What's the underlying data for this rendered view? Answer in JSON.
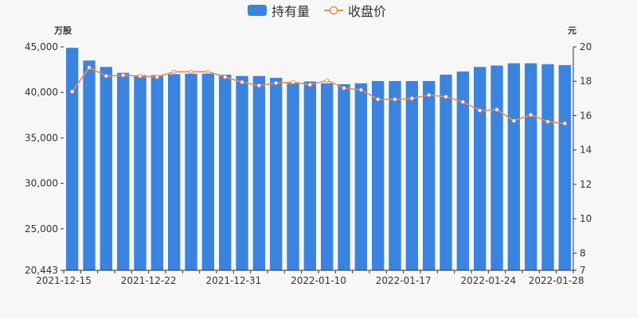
{
  "chart_data": {
    "type": "bar",
    "legend": {
      "placement": "top-center",
      "items": [
        {
          "name": "持有量",
          "kind": "bar",
          "color": "#3a84e0"
        },
        {
          "name": "收盘价",
          "kind": "line",
          "color": "#ef8a4a"
        }
      ]
    },
    "units": {
      "left": "万股",
      "right": "元"
    },
    "left_axis": {
      "min": 20443,
      "max": 45000,
      "ticks": [
        20443,
        25000,
        30000,
        35000,
        40000,
        45000
      ],
      "tick_labels": [
        "20,443",
        "25,000",
        "30,000",
        "35,000",
        "40,000",
        "45,000"
      ]
    },
    "right_axis": {
      "min": 7,
      "max": 20,
      "ticks": [
        7,
        8,
        10,
        12,
        14,
        16,
        18,
        20
      ],
      "tick_labels": [
        "7",
        "8",
        "10",
        "12",
        "14",
        "16",
        "18",
        "20"
      ]
    },
    "x_tick_labels": [
      {
        "index": 0,
        "label": "2021-12-15"
      },
      {
        "index": 5,
        "label": "2021-12-22"
      },
      {
        "index": 10,
        "label": "2021-12-31"
      },
      {
        "index": 15,
        "label": "2022-01-10"
      },
      {
        "index": 20,
        "label": "2022-01-17"
      },
      {
        "index": 25,
        "label": "2022-01-24"
      },
      {
        "index": 29,
        "label": "2022-01-28"
      }
    ],
    "series": [
      {
        "name": "持有量",
        "type": "bar",
        "axis": "left",
        "color": "#3a84e0",
        "values": [
          44900,
          43500,
          42800,
          42150,
          41900,
          41900,
          42000,
          42050,
          42050,
          41950,
          41800,
          41800,
          41600,
          41000,
          41200,
          41000,
          40900,
          41000,
          41250,
          41250,
          41250,
          41250,
          41950,
          42300,
          42800,
          42950,
          43200,
          43200,
          43100,
          43000
        ]
      },
      {
        "name": "收盘价",
        "type": "line",
        "axis": "right",
        "color": "#ef8a4a",
        "values": [
          17.4,
          18.8,
          18.3,
          18.35,
          18.3,
          18.25,
          18.55,
          18.55,
          18.55,
          18.25,
          17.95,
          17.75,
          17.9,
          17.95,
          17.8,
          18.05,
          17.6,
          17.5,
          16.95,
          16.95,
          17.0,
          17.2,
          17.1,
          16.8,
          16.3,
          16.35,
          15.7,
          16.05,
          15.65,
          15.55
        ]
      }
    ]
  }
}
